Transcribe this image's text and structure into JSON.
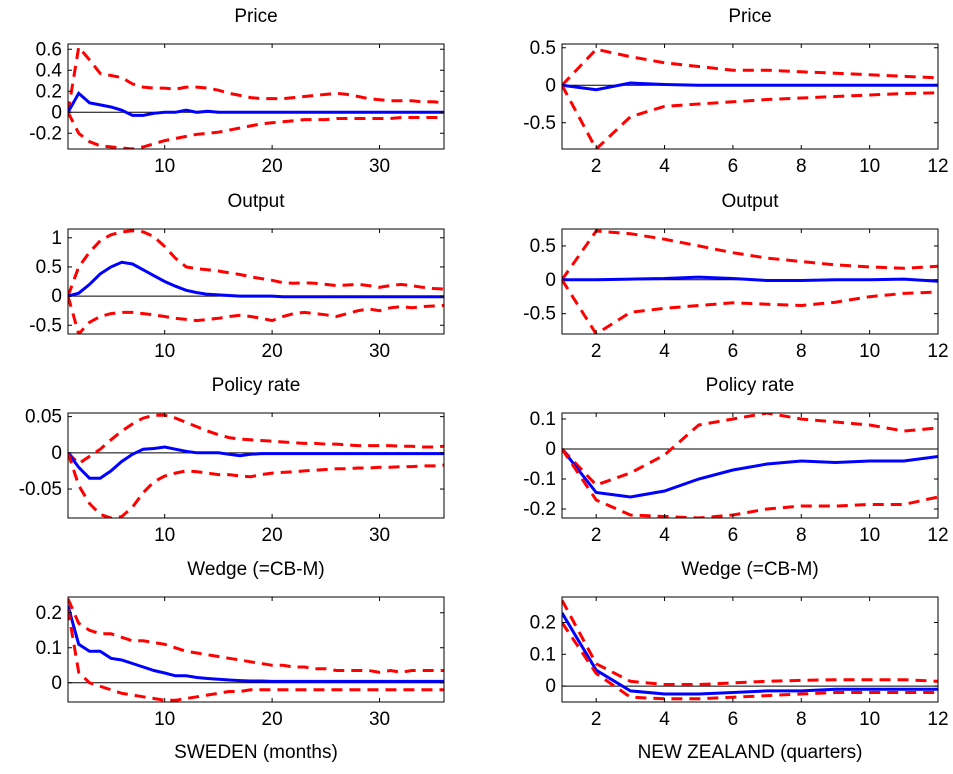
{
  "chart_data": [
    {
      "type": "line",
      "title": "Price",
      "xlabel": "",
      "xlim": [
        1,
        36
      ],
      "ylim": [
        -0.35,
        0.65
      ],
      "xticks": [
        10,
        20,
        30
      ],
      "yticks": [
        -0.2,
        0,
        0.2,
        0.4,
        0.6
      ],
      "yticklabels": [
        "-0.2",
        "0",
        "0.2",
        "0.4",
        "0.6"
      ],
      "zero_line": true,
      "x": [
        1,
        2,
        3,
        4,
        5,
        6,
        7,
        8,
        9,
        10,
        11,
        12,
        13,
        14,
        15,
        16,
        17,
        18,
        19,
        20,
        21,
        22,
        23,
        24,
        25,
        26,
        27,
        28,
        29,
        30,
        31,
        32,
        33,
        34,
        35,
        36
      ],
      "series": [
        {
          "role": "upper",
          "values": [
            0,
            0.62,
            0.5,
            0.37,
            0.35,
            0.33,
            0.27,
            0.24,
            0.23,
            0.23,
            0.22,
            0.24,
            0.24,
            0.23,
            0.21,
            0.18,
            0.16,
            0.14,
            0.13,
            0.13,
            0.13,
            0.14,
            0.15,
            0.16,
            0.17,
            0.18,
            0.17,
            0.15,
            0.13,
            0.12,
            0.11,
            0.11,
            0.11,
            0.1,
            0.1,
            0.09
          ]
        },
        {
          "role": "irf",
          "values": [
            0,
            0.18,
            0.09,
            0.07,
            0.05,
            0.02,
            -0.03,
            -0.03,
            -0.01,
            0,
            0,
            0.02,
            0,
            0.01,
            0,
            0,
            0,
            0,
            0,
            0,
            0,
            0,
            0,
            0,
            0,
            0,
            0,
            0,
            0,
            0,
            0,
            0,
            0,
            0,
            0,
            0
          ]
        },
        {
          "role": "lower",
          "values": [
            0,
            -0.2,
            -0.28,
            -0.32,
            -0.33,
            -0.34,
            -0.35,
            -0.33,
            -0.3,
            -0.27,
            -0.25,
            -0.23,
            -0.21,
            -0.2,
            -0.19,
            -0.17,
            -0.15,
            -0.13,
            -0.11,
            -0.1,
            -0.09,
            -0.08,
            -0.07,
            -0.07,
            -0.07,
            -0.06,
            -0.06,
            -0.06,
            -0.06,
            -0.06,
            -0.06,
            -0.05,
            -0.05,
            -0.05,
            -0.05,
            -0.05
          ]
        }
      ]
    },
    {
      "type": "line",
      "title": "Price",
      "xlabel": "",
      "xlim": [
        1,
        12
      ],
      "ylim": [
        -0.85,
        0.55
      ],
      "xticks": [
        2,
        4,
        6,
        8,
        10,
        12
      ],
      "yticks": [
        -0.5,
        0,
        0.5
      ],
      "yticklabels": [
        "-0.5",
        "0",
        "0.5"
      ],
      "zero_line": true,
      "x": [
        1,
        2,
        3,
        4,
        5,
        6,
        7,
        8,
        9,
        10,
        11,
        12
      ],
      "series": [
        {
          "role": "upper",
          "values": [
            0,
            0.48,
            0.38,
            0.3,
            0.25,
            0.2,
            0.2,
            0.18,
            0.16,
            0.14,
            0.12,
            0.1
          ]
        },
        {
          "role": "irf",
          "values": [
            0,
            -0.06,
            0.03,
            0.01,
            0,
            0,
            0,
            0,
            0,
            0,
            0,
            0
          ]
        },
        {
          "role": "lower",
          "values": [
            0,
            -0.85,
            -0.42,
            -0.28,
            -0.25,
            -0.22,
            -0.19,
            -0.17,
            -0.15,
            -0.13,
            -0.11,
            -0.1
          ]
        }
      ]
    },
    {
      "type": "line",
      "title": "Output",
      "xlabel": "",
      "xlim": [
        1,
        36
      ],
      "ylim": [
        -0.65,
        1.15
      ],
      "xticks": [
        10,
        20,
        30
      ],
      "yticks": [
        -0.5,
        0,
        0.5,
        1
      ],
      "yticklabels": [
        "-0.5",
        "0",
        "0.5",
        "1"
      ],
      "zero_line": true,
      "x": [
        1,
        2,
        3,
        4,
        5,
        6,
        7,
        8,
        9,
        10,
        11,
        12,
        13,
        14,
        15,
        16,
        17,
        18,
        19,
        20,
        21,
        22,
        23,
        24,
        25,
        26,
        27,
        28,
        29,
        30,
        31,
        32,
        33,
        34,
        35,
        36
      ],
      "series": [
        {
          "role": "upper",
          "values": [
            0,
            0.5,
            0.75,
            0.95,
            1.05,
            1.1,
            1.12,
            1.1,
            1.02,
            0.85,
            0.65,
            0.5,
            0.47,
            0.45,
            0.43,
            0.4,
            0.37,
            0.33,
            0.3,
            0.27,
            0.23,
            0.22,
            0.23,
            0.22,
            0.2,
            0.18,
            0.19,
            0.2,
            0.18,
            0.15,
            0.18,
            0.2,
            0.18,
            0.15,
            0.13,
            0.12
          ]
        },
        {
          "role": "irf",
          "values": [
            0,
            0.05,
            0.2,
            0.38,
            0.5,
            0.58,
            0.55,
            0.45,
            0.35,
            0.25,
            0.17,
            0.1,
            0.06,
            0.03,
            0.02,
            0.01,
            0,
            0,
            0,
            0,
            -0.01,
            -0.01,
            -0.01,
            -0.01,
            -0.01,
            -0.01,
            -0.01,
            -0.01,
            -0.01,
            -0.01,
            -0.01,
            -0.01,
            -0.01,
            -0.01,
            -0.01,
            -0.01
          ]
        },
        {
          "role": "lower",
          "values": [
            0,
            -0.65,
            -0.45,
            -0.35,
            -0.3,
            -0.28,
            -0.28,
            -0.3,
            -0.32,
            -0.35,
            -0.38,
            -0.4,
            -0.42,
            -0.4,
            -0.38,
            -0.35,
            -0.33,
            -0.35,
            -0.38,
            -0.42,
            -0.35,
            -0.3,
            -0.28,
            -0.3,
            -0.32,
            -0.35,
            -0.3,
            -0.25,
            -0.22,
            -0.25,
            -0.2,
            -0.18,
            -0.2,
            -0.18,
            -0.17,
            -0.16
          ]
        }
      ]
    },
    {
      "type": "line",
      "title": "Output",
      "xlabel": "",
      "xlim": [
        1,
        12
      ],
      "ylim": [
        -0.8,
        0.75
      ],
      "xticks": [
        2,
        4,
        6,
        8,
        10,
        12
      ],
      "yticks": [
        -0.5,
        0,
        0.5
      ],
      "yticklabels": [
        "-0.5",
        "0",
        "0.5"
      ],
      "zero_line": true,
      "x": [
        1,
        2,
        3,
        4,
        5,
        6,
        7,
        8,
        9,
        10,
        11,
        12
      ],
      "series": [
        {
          "role": "upper",
          "values": [
            0,
            0.72,
            0.68,
            0.6,
            0.5,
            0.4,
            0.32,
            0.27,
            0.22,
            0.19,
            0.17,
            0.2
          ]
        },
        {
          "role": "irf",
          "values": [
            0,
            0,
            0.01,
            0.02,
            0.04,
            0.02,
            -0.01,
            -0.01,
            0,
            0,
            0.01,
            -0.02
          ]
        },
        {
          "role": "lower",
          "values": [
            0,
            -0.8,
            -0.48,
            -0.42,
            -0.38,
            -0.34,
            -0.36,
            -0.38,
            -0.33,
            -0.25,
            -0.2,
            -0.18
          ]
        }
      ]
    },
    {
      "type": "line",
      "title": "Policy rate",
      "xlabel": "",
      "xlim": [
        1,
        36
      ],
      "ylim": [
        -0.09,
        0.055
      ],
      "xticks": [
        10,
        20,
        30
      ],
      "yticks": [
        -0.05,
        0,
        0.05
      ],
      "yticklabels": [
        "-0.05",
        "0",
        "0.05"
      ],
      "zero_line": true,
      "x": [
        1,
        2,
        3,
        4,
        5,
        6,
        7,
        8,
        9,
        10,
        11,
        12,
        13,
        14,
        15,
        16,
        17,
        18,
        19,
        20,
        21,
        22,
        23,
        24,
        25,
        26,
        27,
        28,
        29,
        30,
        31,
        32,
        33,
        34,
        35,
        36
      ],
      "series": [
        {
          "role": "upper",
          "values": [
            0,
            -0.015,
            -0.005,
            0.005,
            0.018,
            0.03,
            0.04,
            0.048,
            0.052,
            0.052,
            0.048,
            0.042,
            0.036,
            0.03,
            0.025,
            0.021,
            0.019,
            0.018,
            0.017,
            0.016,
            0.015,
            0.014,
            0.013,
            0.013,
            0.012,
            0.012,
            0.011,
            0.01,
            0.01,
            0.01,
            0.01,
            0.009,
            0.009,
            0.008,
            0.008,
            0.009
          ]
        },
        {
          "role": "irf",
          "values": [
            0,
            -0.02,
            -0.035,
            -0.035,
            -0.025,
            -0.012,
            -0.002,
            0.005,
            0.006,
            0.008,
            0.005,
            0.002,
            0,
            0,
            0,
            -0.002,
            -0.004,
            -0.002,
            -0.001,
            -0.001,
            -0.001,
            -0.001,
            -0.001,
            -0.001,
            -0.001,
            -0.001,
            -0.001,
            -0.001,
            -0.001,
            -0.001,
            -0.001,
            -0.001,
            -0.001,
            -0.001,
            -0.001,
            -0.001
          ]
        },
        {
          "role": "lower",
          "values": [
            0,
            -0.045,
            -0.07,
            -0.085,
            -0.09,
            -0.088,
            -0.075,
            -0.055,
            -0.04,
            -0.032,
            -0.028,
            -0.025,
            -0.026,
            -0.028,
            -0.03,
            -0.03,
            -0.032,
            -0.033,
            -0.03,
            -0.028,
            -0.027,
            -0.026,
            -0.025,
            -0.024,
            -0.023,
            -0.022,
            -0.022,
            -0.021,
            -0.021,
            -0.02,
            -0.02,
            -0.019,
            -0.019,
            -0.018,
            -0.018,
            -0.017
          ]
        }
      ]
    },
    {
      "type": "line",
      "title": "Policy rate",
      "xlabel": "",
      "xlim": [
        1,
        12
      ],
      "ylim": [
        -0.23,
        0.12
      ],
      "xticks": [
        2,
        4,
        6,
        8,
        10,
        12
      ],
      "yticks": [
        -0.2,
        -0.1,
        0,
        0.1
      ],
      "yticklabels": [
        "-0.2",
        "-0.1",
        "0",
        "0.1"
      ],
      "zero_line": true,
      "x": [
        1,
        2,
        3,
        4,
        5,
        6,
        7,
        8,
        9,
        10,
        11,
        12
      ],
      "series": [
        {
          "role": "upper",
          "values": [
            0,
            -0.12,
            -0.08,
            -0.02,
            0.08,
            0.1,
            0.12,
            0.1,
            0.09,
            0.08,
            0.06,
            0.07
          ]
        },
        {
          "role": "irf",
          "values": [
            0,
            -0.145,
            -0.16,
            -0.14,
            -0.1,
            -0.07,
            -0.05,
            -0.04,
            -0.045,
            -0.04,
            -0.04,
            -0.025
          ]
        },
        {
          "role": "lower",
          "values": [
            0,
            -0.17,
            -0.22,
            -0.225,
            -0.23,
            -0.22,
            -0.2,
            -0.19,
            -0.19,
            -0.185,
            -0.185,
            -0.16
          ]
        }
      ]
    },
    {
      "type": "line",
      "title": "Wedge (=CB-M)",
      "xlabel": "SWEDEN (months)",
      "xlim": [
        1,
        36
      ],
      "ylim": [
        -0.055,
        0.245
      ],
      "xticks": [
        10,
        20,
        30
      ],
      "yticks": [
        0,
        0.1,
        0.2
      ],
      "yticklabels": [
        "0",
        "0.1",
        "0.2"
      ],
      "zero_line": true,
      "x": [
        1,
        2,
        3,
        4,
        5,
        6,
        7,
        8,
        9,
        10,
        11,
        12,
        13,
        14,
        15,
        16,
        17,
        18,
        19,
        20,
        21,
        22,
        23,
        24,
        25,
        26,
        27,
        28,
        29,
        30,
        31,
        32,
        33,
        34,
        35,
        36
      ],
      "series": [
        {
          "role": "upper",
          "values": [
            0.24,
            0.17,
            0.15,
            0.14,
            0.14,
            0.13,
            0.12,
            0.12,
            0.115,
            0.11,
            0.1,
            0.09,
            0.085,
            0.08,
            0.075,
            0.07,
            0.065,
            0.06,
            0.055,
            0.05,
            0.05,
            0.045,
            0.045,
            0.04,
            0.04,
            0.035,
            0.035,
            0.035,
            0.035,
            0.03,
            0.035,
            0.03,
            0.035,
            0.035,
            0.035,
            0.035
          ]
        },
        {
          "role": "irf",
          "values": [
            0.22,
            0.11,
            0.09,
            0.09,
            0.07,
            0.065,
            0.055,
            0.045,
            0.035,
            0.028,
            0.02,
            0.02,
            0.015,
            0.012,
            0.01,
            0.008,
            0.006,
            0.005,
            0.005,
            0.004,
            0.004,
            0.004,
            0.004,
            0.004,
            0.004,
            0.004,
            0.004,
            0.004,
            0.004,
            0.004,
            0.004,
            0.004,
            0.004,
            0.004,
            0.004,
            0.004
          ]
        },
        {
          "role": "lower",
          "values": [
            0.21,
            0.03,
            0.0,
            -0.01,
            -0.02,
            -0.03,
            -0.035,
            -0.04,
            -0.045,
            -0.05,
            -0.05,
            -0.045,
            -0.04,
            -0.035,
            -0.03,
            -0.025,
            -0.025,
            -0.02,
            -0.02,
            -0.02,
            -0.02,
            -0.02,
            -0.02,
            -0.02,
            -0.02,
            -0.02,
            -0.02,
            -0.02,
            -0.02,
            -0.02,
            -0.02,
            -0.02,
            -0.02,
            -0.02,
            -0.02,
            -0.02
          ]
        }
      ]
    },
    {
      "type": "line",
      "title": "Wedge (=CB-M)",
      "xlabel": "NEW ZEALAND (quarters)",
      "xlim": [
        1,
        12
      ],
      "ylim": [
        -0.05,
        0.28
      ],
      "xticks": [
        2,
        4,
        6,
        8,
        10,
        12
      ],
      "yticks": [
        0,
        0.1,
        0.2
      ],
      "yticklabels": [
        "0",
        "0.1",
        "0.2"
      ],
      "zero_line": true,
      "x": [
        1,
        2,
        3,
        4,
        5,
        6,
        7,
        8,
        9,
        10,
        11,
        12
      ],
      "series": [
        {
          "role": "upper",
          "values": [
            0.27,
            0.07,
            0.015,
            0.005,
            0.005,
            0.01,
            0.015,
            0.018,
            0.02,
            0.02,
            0.02,
            0.015
          ]
        },
        {
          "role": "irf",
          "values": [
            0.23,
            0.05,
            -0.015,
            -0.025,
            -0.025,
            -0.02,
            -0.015,
            -0.015,
            -0.01,
            -0.01,
            -0.01,
            -0.01
          ]
        },
        {
          "role": "lower",
          "values": [
            0.2,
            0.04,
            -0.035,
            -0.04,
            -0.04,
            -0.035,
            -0.03,
            -0.025,
            -0.02,
            -0.02,
            -0.02,
            -0.02
          ]
        }
      ]
    }
  ]
}
